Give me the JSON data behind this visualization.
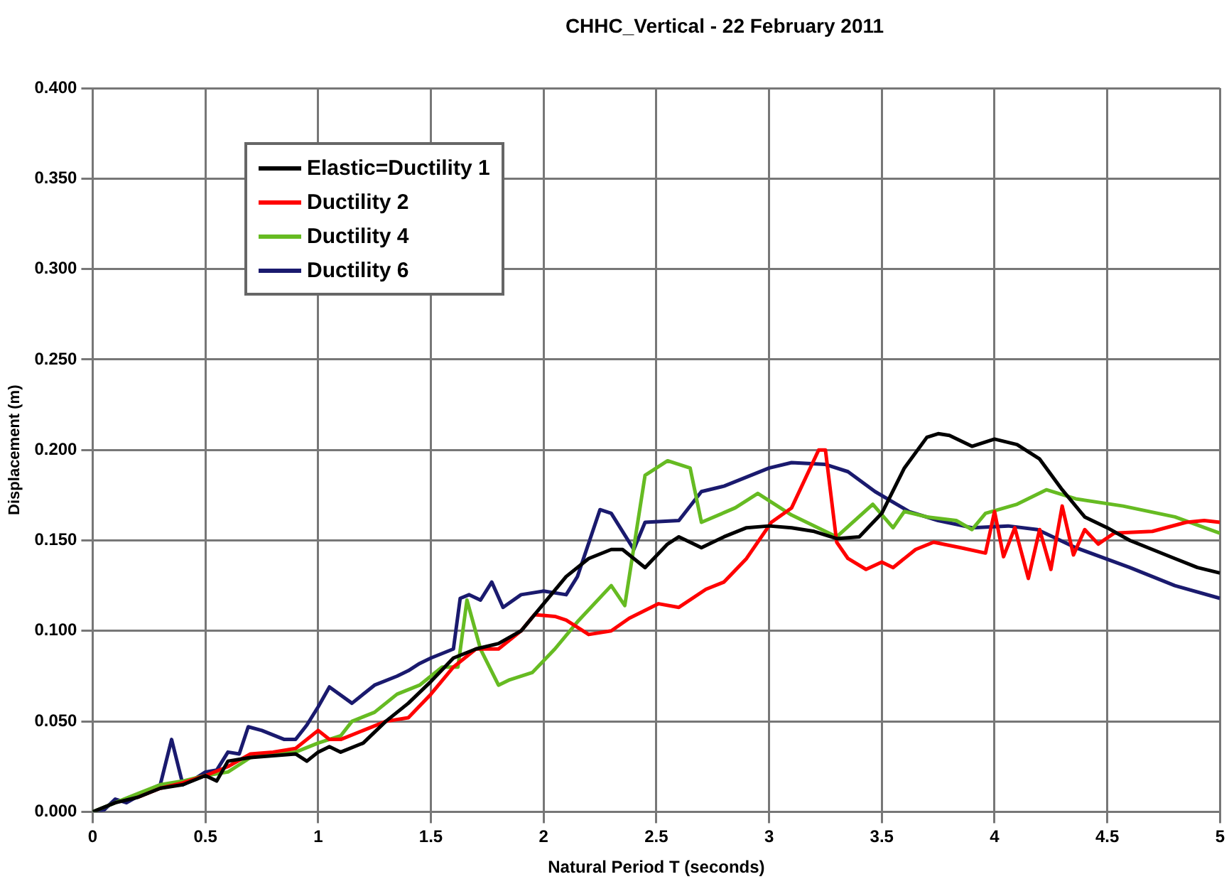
{
  "chart_data": {
    "type": "line",
    "title": "CHHC_Vertical - 22 February 2011",
    "xlabel": "Natural Period T (seconds)",
    "ylabel": "Displacement (m)",
    "xlim": [
      0,
      5
    ],
    "xticks": [
      0,
      0.5,
      1,
      1.5,
      2,
      2.5,
      3,
      3.5,
      4,
      4.5,
      5
    ],
    "ylim": [
      0,
      0.4
    ],
    "yticks": [
      {
        "value": 0,
        "label": "0.000"
      },
      {
        "value": 0.05,
        "label": "0.050"
      },
      {
        "value": 0.1,
        "label": "0.100"
      },
      {
        "value": 0.15,
        "label": "0.150"
      },
      {
        "value": 0.2,
        "label": "0.200"
      },
      {
        "value": 0.25,
        "label": "0.250"
      },
      {
        "value": 0.3,
        "label": "0.300"
      },
      {
        "value": 0.35,
        "label": "0.350"
      },
      {
        "value": 0.4,
        "label": "0.400"
      }
    ],
    "grid": true,
    "legend": "top left",
    "marker": "none",
    "line_style": "solid",
    "series": [
      {
        "name": "Elastic=Ductility 1",
        "color": "#000000",
        "x": [
          0,
          0.1,
          0.2,
          0.3,
          0.4,
          0.5,
          0.55,
          0.6,
          0.7,
          0.8,
          0.9,
          0.95,
          1.0,
          1.05,
          1.1,
          1.2,
          1.3,
          1.4,
          1.5,
          1.6,
          1.7,
          1.8,
          1.9,
          2.0,
          2.1,
          2.2,
          2.3,
          2.35,
          2.45,
          2.55,
          2.6,
          2.7,
          2.8,
          2.9,
          3.0,
          3.1,
          3.2,
          3.3,
          3.4,
          3.5,
          3.6,
          3.7,
          3.75,
          3.8,
          3.9,
          4.0,
          4.1,
          4.2,
          4.3,
          4.4,
          4.5,
          4.6,
          4.7,
          4.8,
          4.9,
          5.0
        ],
        "values": [
          0,
          0.005,
          0.008,
          0.013,
          0.015,
          0.02,
          0.017,
          0.028,
          0.03,
          0.031,
          0.032,
          0.028,
          0.033,
          0.036,
          0.033,
          0.038,
          0.05,
          0.06,
          0.072,
          0.085,
          0.09,
          0.093,
          0.1,
          0.115,
          0.13,
          0.14,
          0.145,
          0.145,
          0.135,
          0.148,
          0.152,
          0.146,
          0.152,
          0.157,
          0.158,
          0.157,
          0.155,
          0.151,
          0.152,
          0.165,
          0.19,
          0.207,
          0.209,
          0.208,
          0.202,
          0.206,
          0.203,
          0.195,
          0.178,
          0.163,
          0.157,
          0.15,
          0.145,
          0.14,
          0.135,
          0.132
        ]
      },
      {
        "name": "Ductility 2",
        "color": "#ff0000",
        "x": [
          0.2,
          0.3,
          0.4,
          0.5,
          0.6,
          0.7,
          0.8,
          0.9,
          1.0,
          1.05,
          1.1,
          1.2,
          1.3,
          1.4,
          1.5,
          1.6,
          1.7,
          1.8,
          1.9,
          1.96,
          2.05,
          2.1,
          2.2,
          2.3,
          2.38,
          2.51,
          2.6,
          2.72,
          2.8,
          2.9,
          3.01,
          3.1,
          3.22,
          3.25,
          3.3,
          3.35,
          3.43,
          3.5,
          3.55,
          3.65,
          3.73,
          3.85,
          3.96,
          4.0,
          4.04,
          4.09,
          4.15,
          4.2,
          4.25,
          4.3,
          4.35,
          4.4,
          4.46,
          4.53,
          4.7,
          4.85,
          4.93,
          5.0
        ],
        "values": [
          0.008,
          0.013,
          0.016,
          0.02,
          0.025,
          0.032,
          0.033,
          0.035,
          0.045,
          0.04,
          0.04,
          0.045,
          0.05,
          0.052,
          0.065,
          0.08,
          0.09,
          0.09,
          0.1,
          0.109,
          0.108,
          0.106,
          0.098,
          0.1,
          0.107,
          0.115,
          0.113,
          0.123,
          0.127,
          0.14,
          0.16,
          0.168,
          0.2,
          0.2,
          0.149,
          0.14,
          0.134,
          0.138,
          0.135,
          0.145,
          0.149,
          0.146,
          0.143,
          0.166,
          0.141,
          0.157,
          0.129,
          0.156,
          0.134,
          0.169,
          0.142,
          0.156,
          0.148,
          0.154,
          0.155,
          0.16,
          0.161,
          0.16
        ]
      },
      {
        "name": "Ductility 4",
        "color": "#66bb22",
        "x": [
          0,
          0.1,
          0.2,
          0.3,
          0.4,
          0.5,
          0.6,
          0.7,
          0.8,
          0.9,
          1.0,
          1.1,
          1.15,
          1.25,
          1.35,
          1.45,
          1.55,
          1.62,
          1.66,
          1.72,
          1.8,
          1.85,
          1.95,
          2.05,
          2.15,
          2.3,
          2.36,
          2.45,
          2.55,
          2.65,
          2.7,
          2.85,
          2.95,
          3.1,
          3.3,
          3.46,
          3.55,
          3.6,
          3.7,
          3.83,
          3.9,
          3.96,
          4.1,
          4.23,
          4.36,
          4.57,
          4.8,
          5.0
        ],
        "values": [
          0,
          0.005,
          0.01,
          0.015,
          0.017,
          0.02,
          0.022,
          0.03,
          0.032,
          0.033,
          0.038,
          0.042,
          0.05,
          0.055,
          0.065,
          0.07,
          0.08,
          0.08,
          0.117,
          0.09,
          0.07,
          0.073,
          0.077,
          0.09,
          0.105,
          0.125,
          0.114,
          0.186,
          0.194,
          0.19,
          0.16,
          0.168,
          0.176,
          0.164,
          0.152,
          0.17,
          0.157,
          0.166,
          0.163,
          0.161,
          0.156,
          0.165,
          0.17,
          0.178,
          0.173,
          0.169,
          0.163,
          0.154
        ]
      },
      {
        "name": "Ductility 6",
        "color": "#1a1a6e",
        "x": [
          0,
          0.05,
          0.1,
          0.15,
          0.25,
          0.3,
          0.35,
          0.4,
          0.45,
          0.5,
          0.55,
          0.6,
          0.65,
          0.69,
          0.75,
          0.85,
          0.9,
          0.95,
          1.0,
          1.05,
          1.15,
          1.25,
          1.35,
          1.4,
          1.45,
          1.5,
          1.6,
          1.63,
          1.67,
          1.72,
          1.77,
          1.82,
          1.9,
          2.0,
          2.1,
          2.15,
          2.25,
          2.3,
          2.4,
          2.45,
          2.6,
          2.7,
          2.8,
          2.9,
          3.0,
          3.1,
          3.25,
          3.35,
          3.47,
          3.62,
          3.75,
          3.9,
          4.06,
          4.19,
          4.36,
          4.6,
          4.8,
          5.0
        ],
        "values": [
          0,
          0.001,
          0.007,
          0.005,
          0.012,
          0.015,
          0.04,
          0.015,
          0.018,
          0.022,
          0.023,
          0.033,
          0.032,
          0.047,
          0.045,
          0.04,
          0.04,
          0.048,
          0.058,
          0.069,
          0.06,
          0.07,
          0.075,
          0.078,
          0.082,
          0.085,
          0.09,
          0.118,
          0.12,
          0.117,
          0.127,
          0.113,
          0.12,
          0.122,
          0.12,
          0.13,
          0.167,
          0.165,
          0.145,
          0.16,
          0.161,
          0.177,
          0.18,
          0.185,
          0.19,
          0.193,
          0.192,
          0.188,
          0.177,
          0.166,
          0.161,
          0.157,
          0.158,
          0.156,
          0.146,
          0.135,
          0.125,
          0.118
        ]
      }
    ]
  }
}
